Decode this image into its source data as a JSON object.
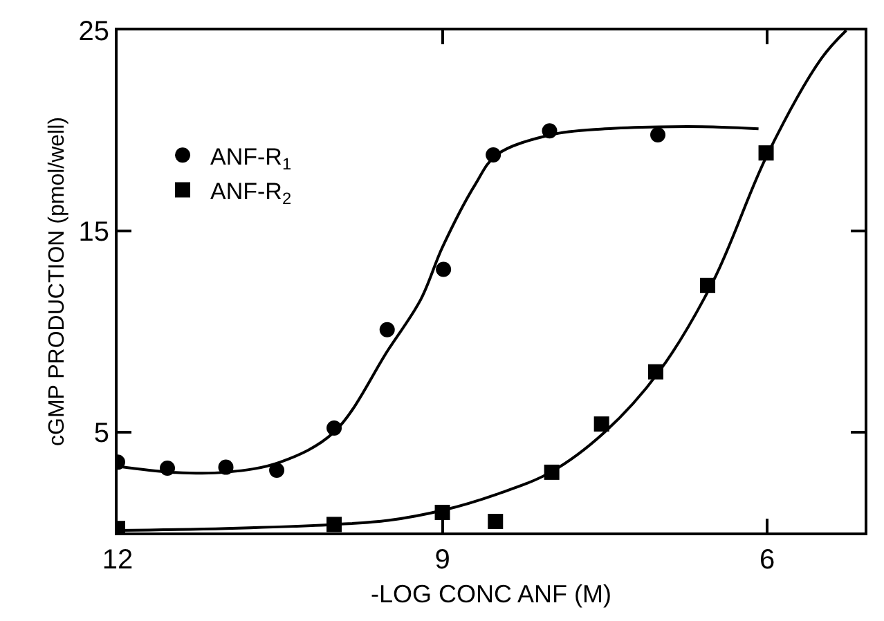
{
  "chart_data": {
    "type": "scatter",
    "xlabel": "-LOG CONC ANF (M)",
    "ylabel": "cGMP PRODUCTION (pmol/well)",
    "xlim": [
      12,
      5.1
    ],
    "xticks": [
      12,
      9,
      6
    ],
    "ylim": [
      0,
      25
    ],
    "yticks": [
      5,
      15,
      25
    ],
    "legend": "top left",
    "series": [
      {
        "name": "ANF-R$_{1}$",
        "color": "#000000",
        "marker": "circle",
        "x": [
          12,
          11.54,
          11.0,
          10.53,
          10.0,
          9.51,
          8.99,
          8.53,
          8.01,
          7.01
        ],
        "values": [
          3.5,
          3.2,
          3.25,
          3.1,
          5.2,
          10.1,
          13.1,
          18.8,
          20.0,
          19.8
        ]
      },
      {
        "name": "ANF-R$_{2}$",
        "color": "#000000",
        "marker": "square",
        "x": [
          12,
          10.0,
          9.0,
          8.51,
          7.99,
          7.53,
          7.03,
          6.55,
          6.01
        ],
        "values": [
          0.2,
          0.4,
          1.0,
          0.55,
          3.0,
          5.4,
          8.0,
          12.3,
          18.9
        ]
      },
      {
        "type": "line",
        "color": "#000000",
        "line_style": "solid",
        "x": [
          12,
          11.5,
          11,
          10.5,
          10,
          9.5,
          9.2,
          9,
          8.7,
          8.5,
          8.0,
          7.5,
          7.0,
          6.5,
          6.08
        ],
        "values": [
          3.3,
          3.0,
          3.0,
          3.5,
          5.0,
          9.1,
          11.6,
          14.2,
          17.3,
          18.8,
          19.8,
          20.1,
          20.2,
          20.2,
          20.1
        ]
      },
      {
        "type": "line",
        "color": "#000000",
        "line_style": "solid",
        "x": [
          12,
          11,
          10,
          9.5,
          9,
          8.5,
          8,
          7.5,
          7,
          6.5,
          6,
          5.5,
          5.27
        ],
        "values": [
          0.1,
          0.2,
          0.4,
          0.6,
          1.1,
          1.9,
          3.0,
          5.0,
          8.0,
          12.5,
          18.8,
          23.6,
          25
        ]
      }
    ]
  }
}
